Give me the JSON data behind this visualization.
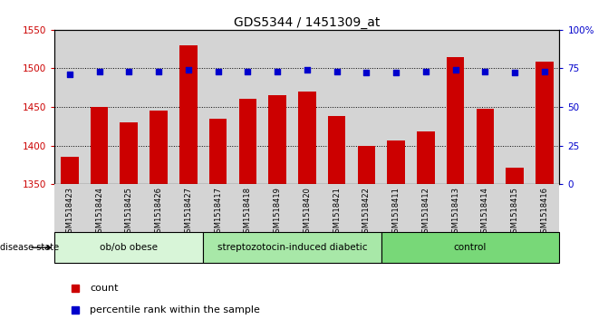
{
  "title": "GDS5344 / 1451309_at",
  "samples": [
    "GSM1518423",
    "GSM1518424",
    "GSM1518425",
    "GSM1518426",
    "GSM1518427",
    "GSM1518417",
    "GSM1518418",
    "GSM1518419",
    "GSM1518420",
    "GSM1518421",
    "GSM1518422",
    "GSM1518411",
    "GSM1518412",
    "GSM1518413",
    "GSM1518414",
    "GSM1518415",
    "GSM1518416"
  ],
  "counts": [
    1385,
    1450,
    1430,
    1445,
    1530,
    1435,
    1460,
    1465,
    1470,
    1438,
    1400,
    1407,
    1418,
    1515,
    1448,
    1372,
    1508
  ],
  "percentiles": [
    71,
    73,
    73,
    73,
    74,
    73,
    73,
    73,
    74,
    73,
    72,
    72,
    73,
    74,
    73,
    72,
    73
  ],
  "groups": [
    {
      "label": "ob/ob obese",
      "start": 0,
      "end": 5
    },
    {
      "label": "streptozotocin-induced diabetic",
      "start": 5,
      "end": 11
    },
    {
      "label": "control",
      "start": 11,
      "end": 17
    }
  ],
  "group_colors": [
    "#d8f5d8",
    "#a8e8a8",
    "#78d878"
  ],
  "ylim_left": [
    1350,
    1550
  ],
  "ylim_right": [
    0,
    100
  ],
  "yticks_left": [
    1350,
    1400,
    1450,
    1500,
    1550
  ],
  "yticks_right": [
    0,
    25,
    50,
    75,
    100
  ],
  "ytick_right_labels": [
    "0",
    "25",
    "50",
    "75",
    "100%"
  ],
  "grid_vals": [
    1400,
    1450,
    1500
  ],
  "bar_color": "#cc0000",
  "dot_color": "#0000cc",
  "axis_color_left": "#cc0000",
  "axis_color_right": "#0000cc",
  "col_bg_color": "#d4d4d4",
  "plot_bg_color": "#ffffff",
  "legend_items": [
    {
      "label": "count",
      "color": "#cc0000"
    },
    {
      "label": "percentile rank within the sample",
      "color": "#0000cc"
    }
  ]
}
